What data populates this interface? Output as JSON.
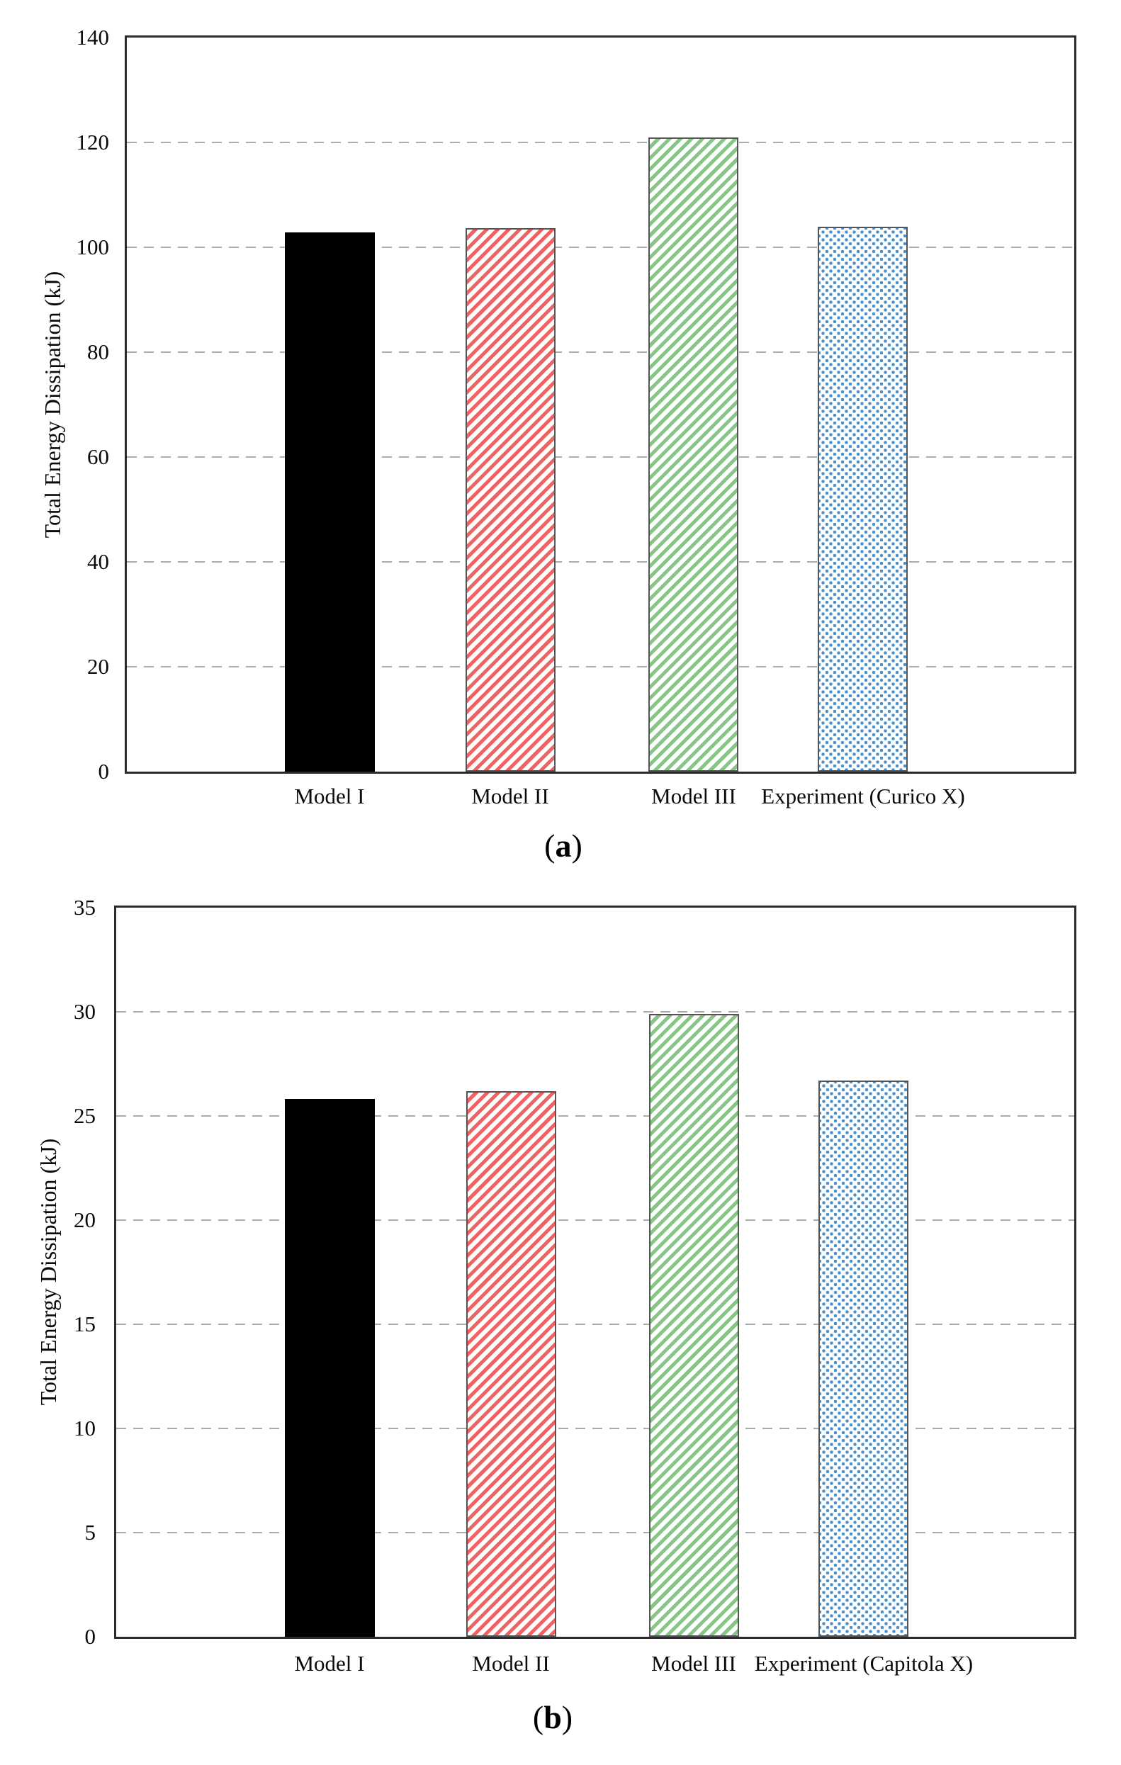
{
  "page": {
    "background_color": "#ffffff",
    "axis_color": "#2b2b2b",
    "grid_color": "#ababab",
    "figure_type": "two-panel bar chart comparison"
  },
  "chart_data": [
    {
      "type": "bar",
      "panel": "a",
      "caption": {
        "open": "(",
        "letter": "a",
        "close": ")"
      },
      "title": "",
      "xlabel": "",
      "ylabel": "Total Energy Dissipation (kJ)",
      "ylim": [
        0,
        140
      ],
      "yticks": [
        0,
        20,
        40,
        60,
        80,
        100,
        120,
        140
      ],
      "grid": "horizontal-dashed",
      "legend": "none",
      "categories": [
        "Model I",
        "Model II",
        "Model III",
        "Experiment (Curico X)"
      ],
      "values": [
        102.9,
        103.6,
        120.9,
        103.9
      ],
      "bar_styles": [
        {
          "pattern": "solid",
          "color": "#000000",
          "border": "#000000"
        },
        {
          "pattern": "diagonal-hatch",
          "color": "#ee6262",
          "border": "#555555"
        },
        {
          "pattern": "diagonal-hatch",
          "color": "#85c585",
          "border": "#555555"
        },
        {
          "pattern": "dot-grid",
          "color": "#4a90cc",
          "border": "#555555"
        }
      ]
    },
    {
      "type": "bar",
      "panel": "b",
      "caption": {
        "open": "(",
        "letter": "b",
        "close": ")"
      },
      "title": "",
      "xlabel": "",
      "ylabel": "Total Energy Dissipation (kJ)",
      "ylim": [
        0,
        35
      ],
      "yticks": [
        0,
        5,
        10,
        15,
        20,
        25,
        30,
        35
      ],
      "grid": "horizontal-dashed",
      "legend": "none",
      "categories": [
        "Model I",
        "Model II",
        "Model III",
        "Experiment (Capitola X)"
      ],
      "values": [
        25.8,
        26.2,
        29.9,
        26.7
      ],
      "bar_styles": [
        {
          "pattern": "solid",
          "color": "#000000",
          "border": "#000000"
        },
        {
          "pattern": "diagonal-hatch",
          "color": "#ee6262",
          "border": "#555555"
        },
        {
          "pattern": "diagonal-hatch",
          "color": "#85c585",
          "border": "#555555"
        },
        {
          "pattern": "dot-grid",
          "color": "#4a90cc",
          "border": "#555555"
        }
      ]
    }
  ]
}
